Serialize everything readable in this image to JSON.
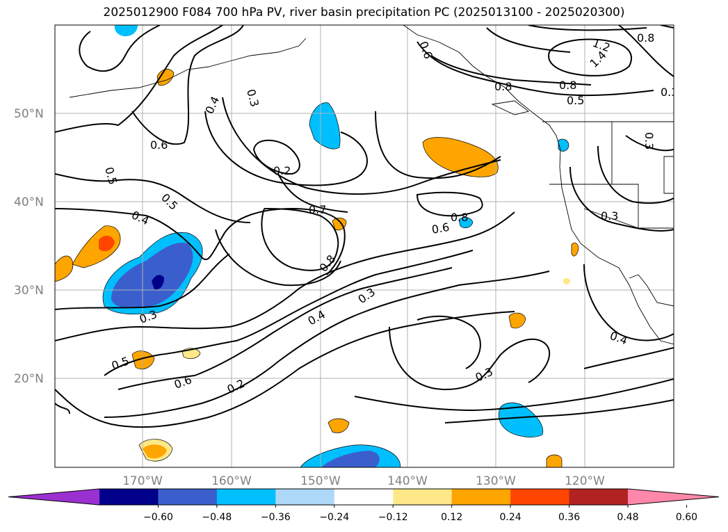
{
  "title": "2025012900 F084 700 hPa PV, river basin precipitation PC (2025013100 - 2025020300)",
  "lat_labels": [
    "50°N",
    "40°N",
    "30°N",
    "20°N"
  ],
  "lon_labels": [
    "170°W",
    "160°W",
    "150°W",
    "140°W",
    "130°W",
    "120°W"
  ],
  "contour_labels": [
    "0.3",
    "0.4",
    "0.6",
    "0.5",
    "0.2",
    "0.5",
    "0.4",
    "0.7",
    "0.8",
    "0.8",
    "0.6",
    "0.3",
    "0.3",
    "0.5",
    "0.6",
    "0.2",
    "0.4",
    "0.3",
    "0.3",
    "0.4",
    "0.6",
    "1.2",
    "1.4",
    "0.8",
    "0.8",
    "0.5",
    "0.3",
    "0.3",
    "0.8"
  ],
  "colorbar": {
    "ticks": [
      "−0.60",
      "−0.48",
      "−0.36",
      "−0.24",
      "−0.12",
      "0.12",
      "0.24",
      "0.36",
      "0.48",
      "0.60"
    ],
    "colors": [
      "#9b30d0",
      "#00008b",
      "#3a5fcd",
      "#00bfff",
      "#add8f7",
      "#ffffff",
      "#ffe88a",
      "#ffa500",
      "#ff4500",
      "#b22222",
      "#ff88aa"
    ]
  }
}
